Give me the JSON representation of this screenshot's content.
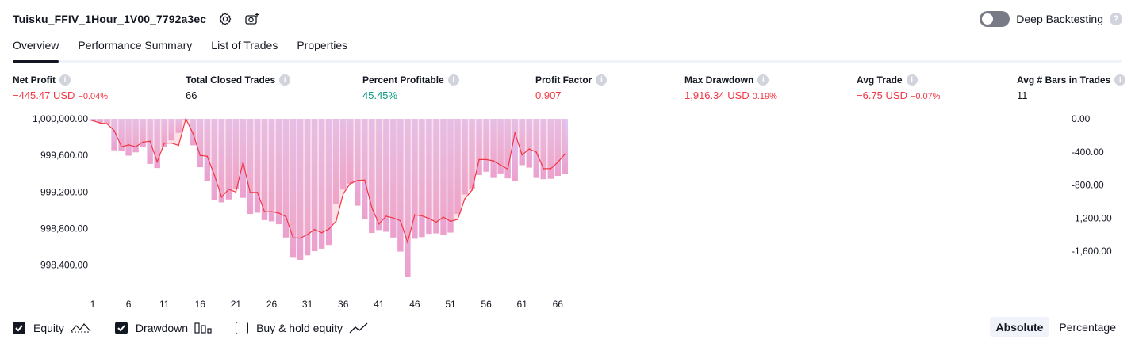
{
  "header": {
    "strategy_title": "Tuisku_FFIV_1Hour_1V00_7792a3ec",
    "settings_icon": "gear-icon",
    "snapshot_icon": "camera-plus-icon",
    "deep_backtesting_label": "Deep Backtesting",
    "deep_backtesting_on": false,
    "help_glyph": "?"
  },
  "tabs": [
    {
      "label": "Overview",
      "active": true
    },
    {
      "label": "Performance Summary",
      "active": false
    },
    {
      "label": "List of Trades",
      "active": false
    },
    {
      "label": "Properties",
      "active": false
    }
  ],
  "metrics": {
    "net_profit": {
      "label": "Net Profit",
      "value": "−445.47 USD",
      "pct": "−0.04%"
    },
    "total_closed_trades": {
      "label": "Total Closed Trades",
      "value": "66"
    },
    "percent_profitable": {
      "label": "Percent Profitable",
      "value": "45.45%"
    },
    "profit_factor": {
      "label": "Profit Factor",
      "value": "0.907"
    },
    "max_drawdown": {
      "label": "Max Drawdown",
      "value": "1,916.34 USD",
      "pct": "0.19%"
    },
    "avg_trade": {
      "label": "Avg Trade",
      "value": "−6.75 USD",
      "pct": "−0.07%"
    },
    "avg_bars": {
      "label": "Avg # Bars in Trades",
      "value": "11"
    },
    "info_glyph": "i"
  },
  "chart_data": {
    "type": "line",
    "x": [
      1,
      2,
      3,
      4,
      5,
      6,
      7,
      8,
      9,
      10,
      11,
      12,
      13,
      14,
      15,
      16,
      17,
      18,
      19,
      20,
      21,
      22,
      23,
      24,
      25,
      26,
      27,
      28,
      29,
      30,
      31,
      32,
      33,
      34,
      35,
      36,
      37,
      38,
      39,
      40,
      41,
      42,
      43,
      44,
      45,
      46,
      47,
      48,
      49,
      50,
      51,
      52,
      53,
      54,
      55,
      56,
      57,
      58,
      59,
      60,
      61,
      62,
      63,
      64,
      65,
      66,
      67
    ],
    "xticks": [
      1,
      6,
      11,
      16,
      21,
      26,
      31,
      36,
      41,
      46,
      51,
      56,
      61,
      66
    ],
    "left_axis": {
      "ticks": [
        "1,000,000.00",
        "999,600.00",
        "999,200.00",
        "998,800.00",
        "998,400.00"
      ],
      "tick_values": [
        1000000,
        999600,
        999200,
        998800,
        998400
      ],
      "range": [
        998250,
        1000000
      ]
    },
    "right_axis": {
      "ticks": [
        "0.00",
        "-400.00",
        "-800.00",
        "-1,200.00",
        "-1,600.00"
      ],
      "tick_values": [
        0,
        -400,
        -800,
        -1200,
        -1600
      ],
      "range": [
        -1935,
        0
      ]
    },
    "series": [
      {
        "name": "Equity",
        "color": "#f23645",
        "values": [
          999980,
          999955,
          999945,
          999870,
          999695,
          999715,
          999695,
          999745,
          999755,
          999530,
          999735,
          999735,
          999710,
          1000000,
          999840,
          999600,
          999590,
          999385,
          999145,
          999230,
          999200,
          999525,
          999195,
          999195,
          998985,
          998985,
          998970,
          998930,
          998700,
          998695,
          998735,
          998790,
          998755,
          998795,
          998880,
          999180,
          999295,
          999325,
          999330,
          999030,
          998850,
          998935,
          998915,
          998885,
          998650,
          998950,
          998940,
          998910,
          998870,
          998925,
          998880,
          998900,
          999125,
          999220,
          999555,
          999555,
          999540,
          999495,
          999450,
          999845,
          999605,
          999670,
          999635,
          999455,
          999455,
          999525,
          999615
        ]
      },
      {
        "name": "Drawdown",
        "color": "#c5a0fc",
        "values": [
          -30,
          -45,
          -65,
          -380,
          -390,
          -445,
          -405,
          -345,
          -545,
          -595,
          -345,
          -260,
          -170,
          -10,
          -320,
          -585,
          -755,
          -985,
          -1010,
          -975,
          -845,
          -955,
          -1150,
          -1135,
          -1225,
          -1240,
          -1275,
          -1435,
          -1680,
          -1705,
          -1650,
          -1600,
          -1570,
          -1525,
          -1030,
          -855,
          -785,
          -1050,
          -1215,
          -1380,
          -1345,
          -1365,
          -1435,
          -1605,
          -1916,
          -1450,
          -1430,
          -1390,
          -1385,
          -1400,
          -1375,
          -1150,
          -915,
          -845,
          -680,
          -640,
          -715,
          -660,
          -720,
          -755,
          -560,
          -590,
          -715,
          -730,
          -725,
          -690,
          -670
        ]
      }
    ]
  },
  "legend": {
    "equity": {
      "label": "Equity",
      "checked": true,
      "icon": "equity-line-icon"
    },
    "drawdown": {
      "label": "Drawdown",
      "checked": true,
      "icon": "bar-chart-icon"
    },
    "buy_hold": {
      "label": "Buy & hold equity",
      "checked": false,
      "icon": "trend-line-icon"
    }
  },
  "scale": {
    "absolute": "Absolute",
    "percentage": "Percentage"
  }
}
